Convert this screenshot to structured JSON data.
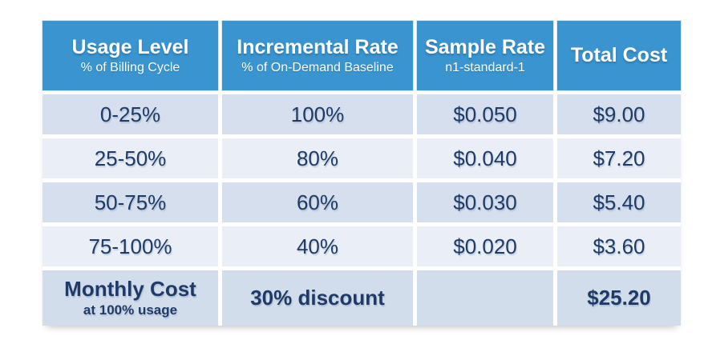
{
  "chart_data": {
    "type": "table",
    "columns": [
      {
        "title": "Usage Level",
        "subtitle": "% of Billing Cycle"
      },
      {
        "title": "Incremental Rate",
        "subtitle": "% of On-Demand Baseline"
      },
      {
        "title": "Sample Rate",
        "subtitle": "n1-standard-1"
      },
      {
        "title": "Total Cost",
        "subtitle": ""
      }
    ],
    "rows": [
      [
        "0-25%",
        "100%",
        "$0.050",
        "$9.00"
      ],
      [
        "25-50%",
        "80%",
        "$0.040",
        "$7.20"
      ],
      [
        "50-75%",
        "60%",
        "$0.030",
        "$5.40"
      ],
      [
        "75-100%",
        "40%",
        "$0.020",
        "$3.60"
      ]
    ],
    "footer_row": {
      "title": "Monthly Cost",
      "subtitle": "at 100% usage",
      "discount": "30% discount",
      "empty": "",
      "total": "$25.20"
    },
    "colors": {
      "header_bg": "#3994cf",
      "header_text": "#ffffff",
      "row_odd_bg": "#d5dfee",
      "row_even_bg": "#eaeff7",
      "footer_bg": "#d2ddec",
      "body_text": "#1e3a66"
    }
  }
}
